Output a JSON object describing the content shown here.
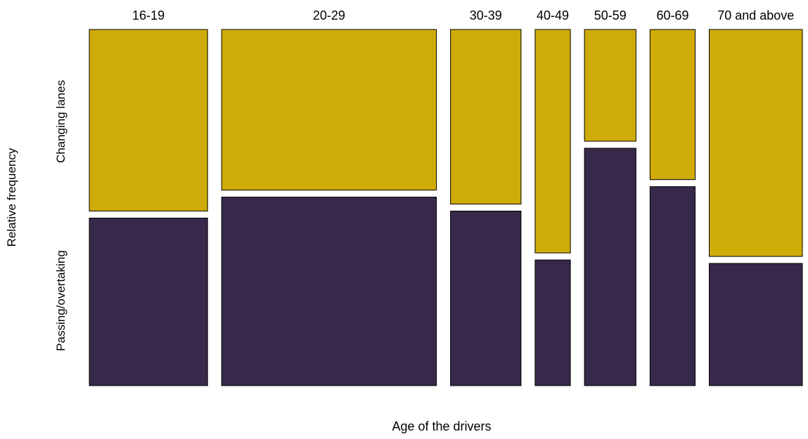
{
  "chart_data": {
    "type": "mosaic",
    "xlabel": "Age of the drivers",
    "ylabel": "Relative frequency",
    "categories": [
      "16-19",
      "20-29",
      "30-39",
      "40-49",
      "50-59",
      "60-69",
      "70 and above"
    ],
    "category_widths": [
      0.2057,
      0.3736,
      0.1227,
      0.0614,
      0.0896,
      0.0785,
      0.162
    ],
    "series": [
      {
        "name": "Passing/overtaking",
        "color": "#37294a",
        "values": [
          0.48,
          0.54,
          0.5,
          0.36,
          0.68,
          0.57,
          0.35
        ]
      },
      {
        "name": "Changing lanes",
        "color": "#cfab08",
        "values": [
          0.52,
          0.46,
          0.5,
          0.64,
          0.32,
          0.43,
          0.65
        ]
      }
    ],
    "ylim": [
      0,
      1
    ],
    "grid": false,
    "legend": "none"
  }
}
